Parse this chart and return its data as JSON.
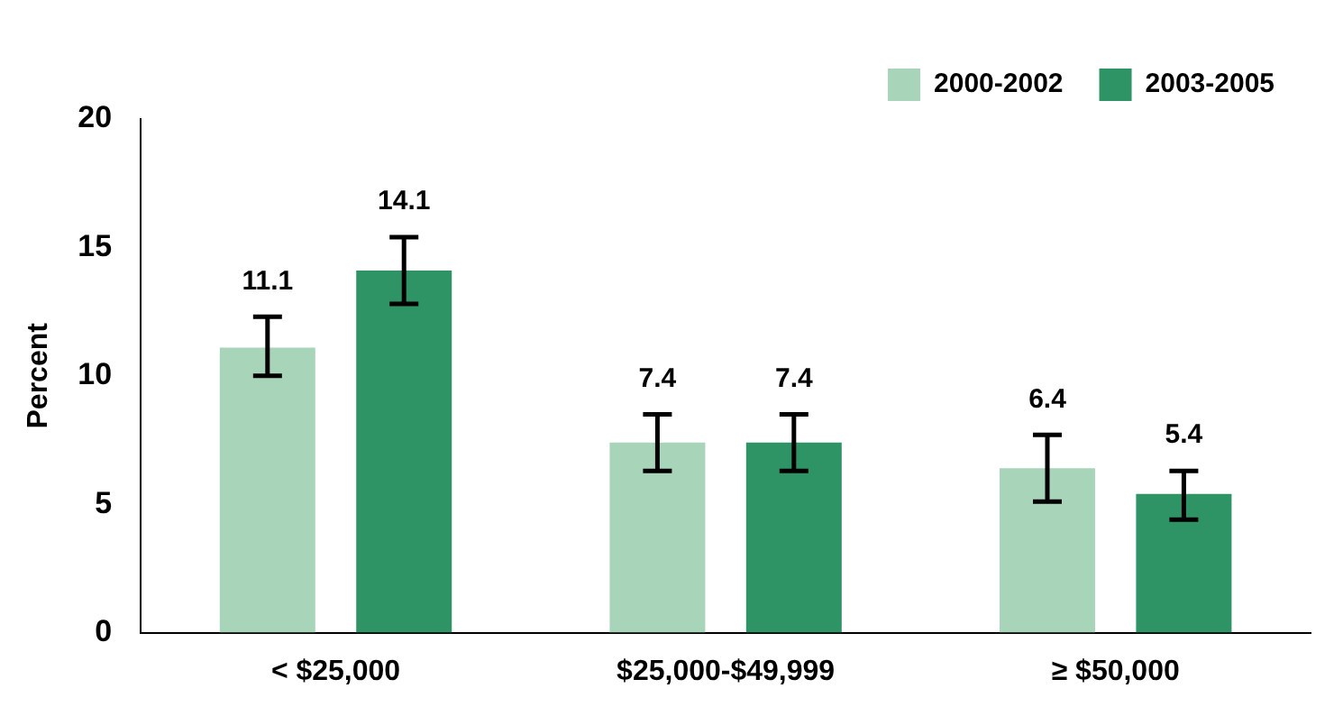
{
  "chart_data": {
    "type": "bar",
    "ylabel": "Percent",
    "categories": [
      "< $25,000",
      "$25,000-$49,999",
      "≥ $50,000"
    ],
    "series": [
      {
        "name": "2000-2002",
        "color": "#a8d5b9",
        "values": [
          11.1,
          7.4,
          6.4
        ],
        "errors": [
          [
            10.0,
            12.3
          ],
          [
            6.3,
            8.5
          ],
          [
            5.1,
            7.7
          ]
        ]
      },
      {
        "name": "2003-2005",
        "color": "#2e9466",
        "values": [
          14.1,
          7.4,
          5.4
        ],
        "errors": [
          [
            12.8,
            15.4
          ],
          [
            6.3,
            8.5
          ],
          [
            4.4,
            6.3
          ]
        ]
      }
    ],
    "ylim": [
      0,
      20
    ],
    "yticks": [
      0,
      5,
      10,
      15,
      20
    ],
    "grid": false,
    "legend": "top right",
    "data_labels": true
  }
}
